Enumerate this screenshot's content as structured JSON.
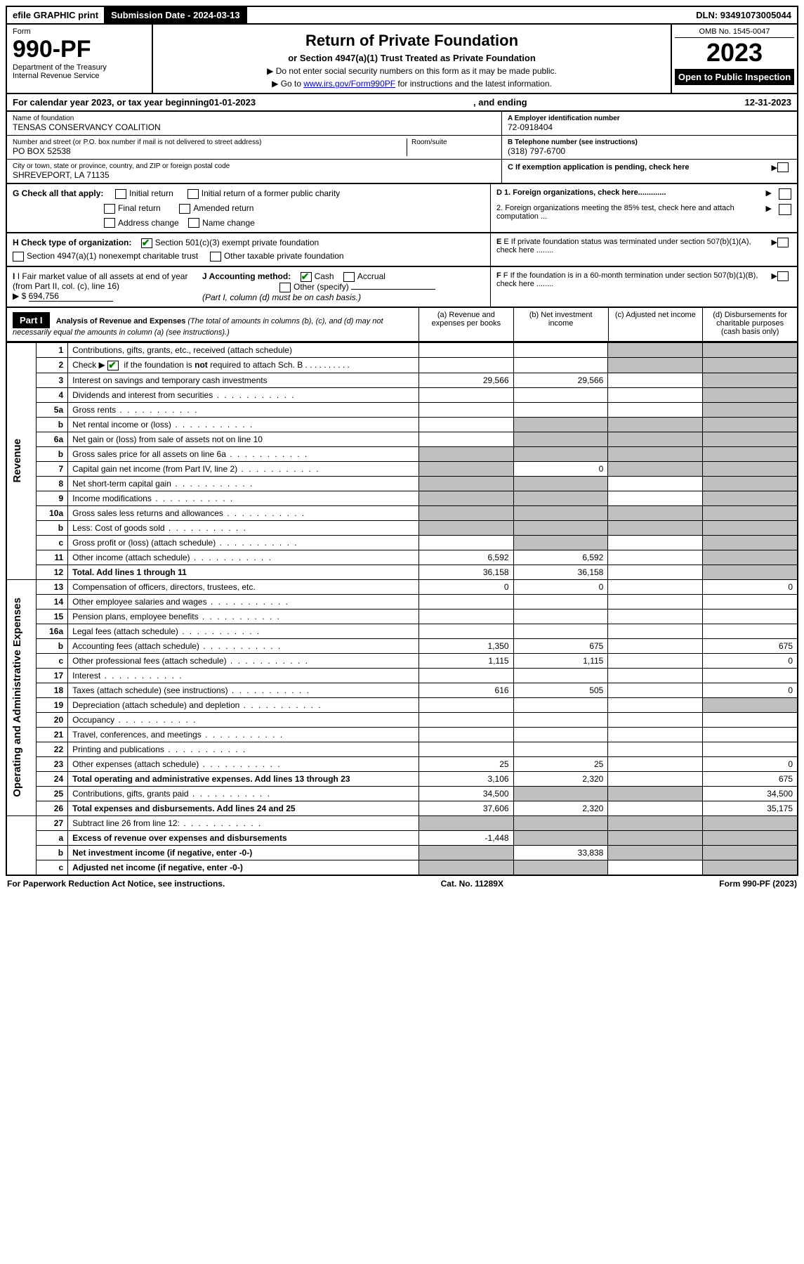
{
  "topbar": {
    "efile": "efile GRAPHIC print",
    "sub_label": "Submission Date - 2024-03-13",
    "dln": "DLN: 93491073005044"
  },
  "header": {
    "form_word": "Form",
    "form_no": "990-PF",
    "dept": "Department of the Treasury",
    "irs": "Internal Revenue Service",
    "title": "Return of Private Foundation",
    "subtitle": "or Section 4947(a)(1) Trust Treated as Private Foundation",
    "instr1": "▶ Do not enter social security numbers on this form as it may be made public.",
    "instr2_pre": "▶ Go to ",
    "instr2_link": "www.irs.gov/Form990PF",
    "instr2_post": " for instructions and the latest information.",
    "omb": "OMB No. 1545-0047",
    "year": "2023",
    "open": "Open to Public Inspection"
  },
  "calyear": {
    "pre": "For calendar year 2023, or tax year beginning ",
    "begin": "01-01-2023",
    "mid": ", and ending ",
    "end": "12-31-2023"
  },
  "info": {
    "name_label": "Name of foundation",
    "name": "TENSAS CONSERVANCY COALITION",
    "addr_label": "Number and street (or P.O. box number if mail is not delivered to street address)",
    "addr": "PO BOX 52538",
    "room_label": "Room/suite",
    "city_label": "City or town, state or province, country, and ZIP or foreign postal code",
    "city": "SHREVEPORT, LA  71135",
    "ein_label": "A Employer identification number",
    "ein": "72-0918404",
    "phone_label": "B Telephone number (see instructions)",
    "phone": "(318) 797-6700",
    "c_label": "C If exemption application is pending, check here",
    "d1": "D 1. Foreign organizations, check here.............",
    "d2": "2. Foreign organizations meeting the 85% test, check here and attach computation ...",
    "e": "E If private foundation status was terminated under section 507(b)(1)(A), check here ........",
    "f": "F If the foundation is in a 60-month termination under section 507(b)(1)(B), check here ........"
  },
  "g": {
    "label": "G Check all that apply:",
    "initial": "Initial return",
    "final": "Final return",
    "address": "Address change",
    "initial_former": "Initial return of a former public charity",
    "amended": "Amended return",
    "name_change": "Name change"
  },
  "h": {
    "label": "H Check type of organization:",
    "s501": "Section 501(c)(3) exempt private foundation",
    "s4947": "Section 4947(a)(1) nonexempt charitable trust",
    "other_tax": "Other taxable private foundation"
  },
  "i": {
    "label": "I Fair market value of all assets at end of year (from Part II, col. (c), line 16)",
    "arrow": "▶ $",
    "value": "694,756"
  },
  "j": {
    "label": "J Accounting method:",
    "cash": "Cash",
    "accrual": "Accrual",
    "other": "Other (specify)",
    "note": "(Part I, column (d) must be on cash basis.)"
  },
  "part1": {
    "badge": "Part I",
    "title": "Analysis of Revenue and Expenses",
    "title_note": " (The total of amounts in columns (b), (c), and (d) may not necessarily equal the amounts in column (a) (see instructions).)",
    "col_a": "(a) Revenue and expenses per books",
    "col_b": "(b) Net investment income",
    "col_c": "(c) Adjusted net income",
    "col_d": "(d) Disbursements for charitable purposes (cash basis only)"
  },
  "sections": {
    "revenue": "Revenue",
    "opex": "Operating and Administrative Expenses"
  },
  "rows": [
    {
      "sec": "rev",
      "n": "1",
      "d": "Contributions, gifts, grants, etc., received (attach schedule)",
      "a": "",
      "b": "",
      "c": "g",
      "dd": "g"
    },
    {
      "sec": "rev",
      "n": "2",
      "d": "Check ▶ ☑ if the foundation is not required to attach Sch. B",
      "bold_not": true,
      "a": "",
      "b": "",
      "c": "g",
      "dd": "g"
    },
    {
      "sec": "rev",
      "n": "3",
      "d": "Interest on savings and temporary cash investments",
      "a": "29,566",
      "b": "29,566",
      "c": "",
      "dd": "g"
    },
    {
      "sec": "rev",
      "n": "4",
      "d": "Dividends and interest from securities",
      "a": "",
      "b": "",
      "c": "",
      "dd": "g"
    },
    {
      "sec": "rev",
      "n": "5a",
      "d": "Gross rents",
      "a": "",
      "b": "",
      "c": "",
      "dd": "g"
    },
    {
      "sec": "rev",
      "n": "b",
      "d": "Net rental income or (loss)",
      "a": "",
      "b": "g",
      "c": "g",
      "dd": "g"
    },
    {
      "sec": "rev",
      "n": "6a",
      "d": "Net gain or (loss) from sale of assets not on line 10",
      "a": "",
      "b": "g",
      "c": "g",
      "dd": "g"
    },
    {
      "sec": "rev",
      "n": "b",
      "d": "Gross sales price for all assets on line 6a",
      "a": "g",
      "b": "g",
      "c": "g",
      "dd": "g"
    },
    {
      "sec": "rev",
      "n": "7",
      "d": "Capital gain net income (from Part IV, line 2)",
      "a": "g",
      "b": "0",
      "c": "g",
      "dd": "g"
    },
    {
      "sec": "rev",
      "n": "8",
      "d": "Net short-term capital gain",
      "a": "g",
      "b": "g",
      "c": "",
      "dd": "g"
    },
    {
      "sec": "rev",
      "n": "9",
      "d": "Income modifications",
      "a": "g",
      "b": "g",
      "c": "",
      "dd": "g"
    },
    {
      "sec": "rev",
      "n": "10a",
      "d": "Gross sales less returns and allowances",
      "a": "g",
      "b": "g",
      "c": "g",
      "dd": "g"
    },
    {
      "sec": "rev",
      "n": "b",
      "d": "Less: Cost of goods sold",
      "a": "g",
      "b": "g",
      "c": "g",
      "dd": "g"
    },
    {
      "sec": "rev",
      "n": "c",
      "d": "Gross profit or (loss) (attach schedule)",
      "a": "",
      "b": "g",
      "c": "",
      "dd": "g"
    },
    {
      "sec": "rev",
      "n": "11",
      "d": "Other income (attach schedule)",
      "a": "6,592",
      "b": "6,592",
      "c": "",
      "dd": "g"
    },
    {
      "sec": "rev",
      "n": "12",
      "d": "Total. Add lines 1 through 11",
      "bold": true,
      "a": "36,158",
      "b": "36,158",
      "c": "",
      "dd": "g"
    },
    {
      "sec": "op",
      "n": "13",
      "d": "Compensation of officers, directors, trustees, etc.",
      "a": "0",
      "b": "0",
      "c": "",
      "dd": "0"
    },
    {
      "sec": "op",
      "n": "14",
      "d": "Other employee salaries and wages",
      "a": "",
      "b": "",
      "c": "",
      "dd": ""
    },
    {
      "sec": "op",
      "n": "15",
      "d": "Pension plans, employee benefits",
      "a": "",
      "b": "",
      "c": "",
      "dd": ""
    },
    {
      "sec": "op",
      "n": "16a",
      "d": "Legal fees (attach schedule)",
      "a": "",
      "b": "",
      "c": "",
      "dd": ""
    },
    {
      "sec": "op",
      "n": "b",
      "d": "Accounting fees (attach schedule)",
      "a": "1,350",
      "b": "675",
      "c": "",
      "dd": "675"
    },
    {
      "sec": "op",
      "n": "c",
      "d": "Other professional fees (attach schedule)",
      "a": "1,115",
      "b": "1,115",
      "c": "",
      "dd": "0"
    },
    {
      "sec": "op",
      "n": "17",
      "d": "Interest",
      "a": "",
      "b": "",
      "c": "",
      "dd": ""
    },
    {
      "sec": "op",
      "n": "18",
      "d": "Taxes (attach schedule) (see instructions)",
      "a": "616",
      "b": "505",
      "c": "",
      "dd": "0"
    },
    {
      "sec": "op",
      "n": "19",
      "d": "Depreciation (attach schedule) and depletion",
      "a": "",
      "b": "",
      "c": "",
      "dd": "g"
    },
    {
      "sec": "op",
      "n": "20",
      "d": "Occupancy",
      "a": "",
      "b": "",
      "c": "",
      "dd": ""
    },
    {
      "sec": "op",
      "n": "21",
      "d": "Travel, conferences, and meetings",
      "a": "",
      "b": "",
      "c": "",
      "dd": ""
    },
    {
      "sec": "op",
      "n": "22",
      "d": "Printing and publications",
      "a": "",
      "b": "",
      "c": "",
      "dd": ""
    },
    {
      "sec": "op",
      "n": "23",
      "d": "Other expenses (attach schedule)",
      "a": "25",
      "b": "25",
      "c": "",
      "dd": "0"
    },
    {
      "sec": "op",
      "n": "24",
      "d": "Total operating and administrative expenses. Add lines 13 through 23",
      "bold": true,
      "a": "3,106",
      "b": "2,320",
      "c": "",
      "dd": "675"
    },
    {
      "sec": "op",
      "n": "25",
      "d": "Contributions, gifts, grants paid",
      "a": "34,500",
      "b": "g",
      "c": "g",
      "dd": "34,500"
    },
    {
      "sec": "op",
      "n": "26",
      "d": "Total expenses and disbursements. Add lines 24 and 25",
      "bold": true,
      "a": "37,606",
      "b": "2,320",
      "c": "",
      "dd": "35,175"
    },
    {
      "sec": "none",
      "n": "27",
      "d": "Subtract line 26 from line 12:",
      "a": "g",
      "b": "g",
      "c": "g",
      "dd": "g"
    },
    {
      "sec": "none",
      "n": "a",
      "d": "Excess of revenue over expenses and disbursements",
      "bold": true,
      "a": "-1,448",
      "b": "g",
      "c": "g",
      "dd": "g"
    },
    {
      "sec": "none",
      "n": "b",
      "d": "Net investment income (if negative, enter -0-)",
      "bold": true,
      "a": "g",
      "b": "33,838",
      "c": "g",
      "dd": "g"
    },
    {
      "sec": "none",
      "n": "c",
      "d": "Adjusted net income (if negative, enter -0-)",
      "bold": true,
      "a": "g",
      "b": "g",
      "c": "",
      "dd": "g"
    }
  ],
  "footer": {
    "left": "For Paperwork Reduction Act Notice, see instructions.",
    "mid": "Cat. No. 11289X",
    "right": "Form 990-PF (2023)"
  },
  "colors": {
    "grey": "#bfbfbf",
    "check": "#008000",
    "link": "#0000cc"
  }
}
